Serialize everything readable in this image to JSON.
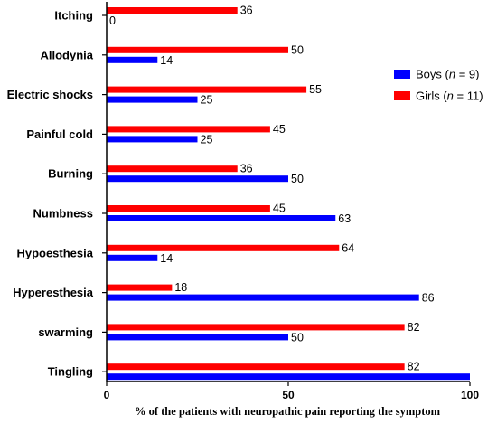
{
  "chart_data": {
    "type": "bar",
    "orientation": "horizontal",
    "categories": [
      "Itching",
      "Allodynia",
      "Electric shocks",
      "Painful cold",
      "Burning",
      "Numbness",
      "Hypoesthesia",
      "Hyperesthesia",
      "swarming",
      "Tingling"
    ],
    "series": [
      {
        "name": "Girls",
        "name_suffix": " (n = 11)",
        "color": "#ff0000",
        "values": [
          36,
          50,
          55,
          45,
          36,
          45,
          64,
          18,
          82,
          82
        ]
      },
      {
        "name": "Boys",
        "name_suffix": " (n = 9)",
        "color": "#0000ff",
        "values": [
          0,
          14,
          25,
          25,
          50,
          63,
          14,
          86,
          50,
          100
        ]
      }
    ],
    "value_labels": {
      "Girls": [
        "36",
        "50",
        "55",
        "45",
        "36",
        "45",
        "64",
        "18",
        "82",
        "82"
      ],
      "Boys": [
        "0",
        "14",
        "25",
        "25",
        "50",
        "63",
        "14",
        "86",
        "50",
        ""
      ]
    },
    "xlabel": "% of the patients with neuropathic pain reporting the symptom",
    "ylabel": "",
    "xlim": [
      0,
      100
    ],
    "xticks": [
      0,
      50,
      100
    ],
    "legend_position": "right",
    "grid": false
  }
}
